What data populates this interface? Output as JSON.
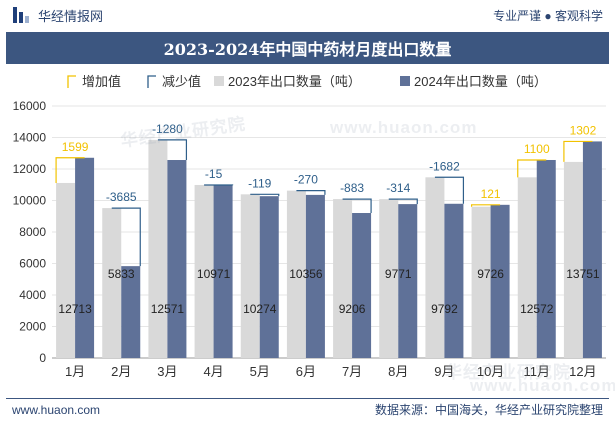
{
  "header": {
    "brand": "华经情报网",
    "tagline": "专业严谨 ● 客观科学"
  },
  "footer": {
    "url": "www.huaon.com",
    "source": "数据来源：中国海关，华经产业研究院整理"
  },
  "watermarks": [
    "华经产业研究院",
    "www.huaon.com",
    "华经产业研究院",
    "www.huaon.com"
  ],
  "colors": {
    "brand": "#3c5680",
    "bar2023": "#d9d9d9",
    "bar2024": "#5f7198",
    "increase": "#f2c200",
    "decrease": "#2f5f8a"
  },
  "chart_data": {
    "type": "bar",
    "title": "2023-2024年中国中药材月度出口数量",
    "categories": [
      "1月",
      "2月",
      "3月",
      "4月",
      "5月",
      "6月",
      "7月",
      "8月",
      "9月",
      "10月",
      "11月",
      "12月"
    ],
    "series": [
      {
        "name": "2023年出口数量（吨）",
        "values": [
          11114,
          9518,
          13851,
          10986,
          10393,
          10626,
          10089,
          10085,
          11474,
          9605,
          11472,
          12449
        ]
      },
      {
        "name": "2024年出口数量（吨）",
        "values": [
          12713,
          5833,
          12571,
          10971,
          10274,
          10356,
          9206,
          9771,
          9792,
          9726,
          12572,
          13751
        ]
      }
    ],
    "changes": [
      1599,
      -3685,
      -1280,
      -15,
      -119,
      -270,
      -883,
      -314,
      -1682,
      121,
      1100,
      1302
    ],
    "change_legend": {
      "increase": "增加值",
      "decrease": "减少值"
    },
    "ylim": [
      0,
      16000
    ],
    "yticks": [
      0,
      2000,
      4000,
      6000,
      8000,
      10000,
      12000,
      14000,
      16000
    ],
    "legend_position": "top",
    "grid": true
  }
}
